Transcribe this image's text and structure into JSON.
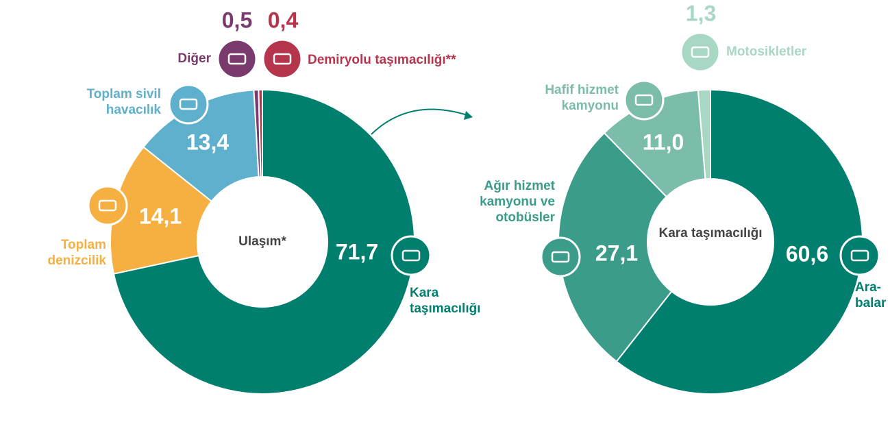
{
  "chart_data": [
    {
      "type": "donut",
      "center_label": "Ulaşım*",
      "categories": [
        "Kara taşımacılığı",
        "Toplam denizcilik",
        "Toplam sivil havacılık",
        "Diğer",
        "Demiryolu taşımacılığı**"
      ],
      "values": [
        71.7,
        14.1,
        13.4,
        0.5,
        0.4
      ],
      "value_labels": [
        "71,7",
        "14,1",
        "13,4",
        "0,5",
        "0,4"
      ],
      "colors": [
        "#007f6e",
        "#f5b041",
        "#5fb0cc",
        "#7a3a6e",
        "#b5364c"
      ]
    },
    {
      "type": "donut",
      "center_label": "Kara taşımacılığı",
      "categories": [
        "Ara-balar",
        "Ağır hizmet kamyonu ve otobüsler",
        "Hafif hizmet kamyonu",
        "Motosikletler"
      ],
      "values": [
        60.6,
        27.1,
        11.0,
        1.3
      ],
      "value_labels": [
        "60,6",
        "27,1",
        "11,0",
        "1,3"
      ],
      "colors": [
        "#007f6e",
        "#3b9c8a",
        "#7cbcab",
        "#a8d8c4"
      ]
    }
  ]
}
